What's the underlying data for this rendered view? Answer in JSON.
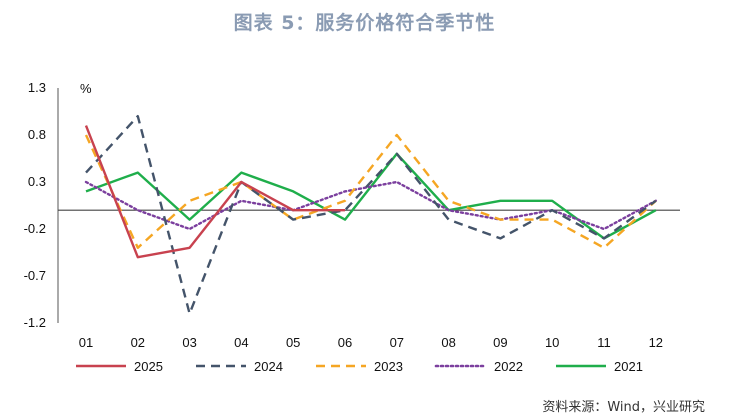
{
  "title": "图表 5：服务价格符合季节性",
  "source": "资料来源：Wind，兴业研究",
  "chart_data": {
    "type": "line",
    "unit_label": "%",
    "categories": [
      "01",
      "02",
      "03",
      "04",
      "05",
      "06",
      "07",
      "08",
      "09",
      "10",
      "11",
      "12"
    ],
    "yticks": [
      "1.3",
      "0.8",
      "0.3",
      "-0.2",
      "-0.7",
      "-1.2"
    ],
    "ylim": [
      -1.2,
      1.3
    ],
    "baseline": 0,
    "legend_position": "bottom",
    "series": [
      {
        "name": "2025",
        "color": "#c8424f",
        "dash": "solid",
        "values": [
          0.9,
          -0.5,
          -0.4,
          0.3,
          0.0,
          0.0,
          null,
          null,
          null,
          null,
          null,
          null
        ]
      },
      {
        "name": "2024",
        "color": "#44546a",
        "dash": "dashed",
        "values": [
          0.4,
          1.0,
          -1.1,
          0.3,
          -0.1,
          0.0,
          0.6,
          -0.1,
          -0.3,
          0.0,
          -0.3,
          0.1
        ]
      },
      {
        "name": "2023",
        "color": "#f5a623",
        "dash": "dashed",
        "values": [
          0.8,
          -0.4,
          0.1,
          0.3,
          -0.1,
          0.1,
          0.8,
          0.1,
          -0.1,
          -0.1,
          -0.4,
          0.1
        ]
      },
      {
        "name": "2022",
        "color": "#7b3f9e",
        "dash": "dotted",
        "values": [
          0.3,
          0.0,
          -0.2,
          0.1,
          0.0,
          0.2,
          0.3,
          0.0,
          -0.1,
          0.0,
          -0.2,
          0.1
        ]
      },
      {
        "name": "2021",
        "color": "#1fae4b",
        "dash": "solid",
        "values": [
          0.2,
          0.4,
          -0.1,
          0.4,
          0.2,
          -0.1,
          0.6,
          0.0,
          0.1,
          0.1,
          -0.3,
          0.0
        ]
      }
    ]
  }
}
